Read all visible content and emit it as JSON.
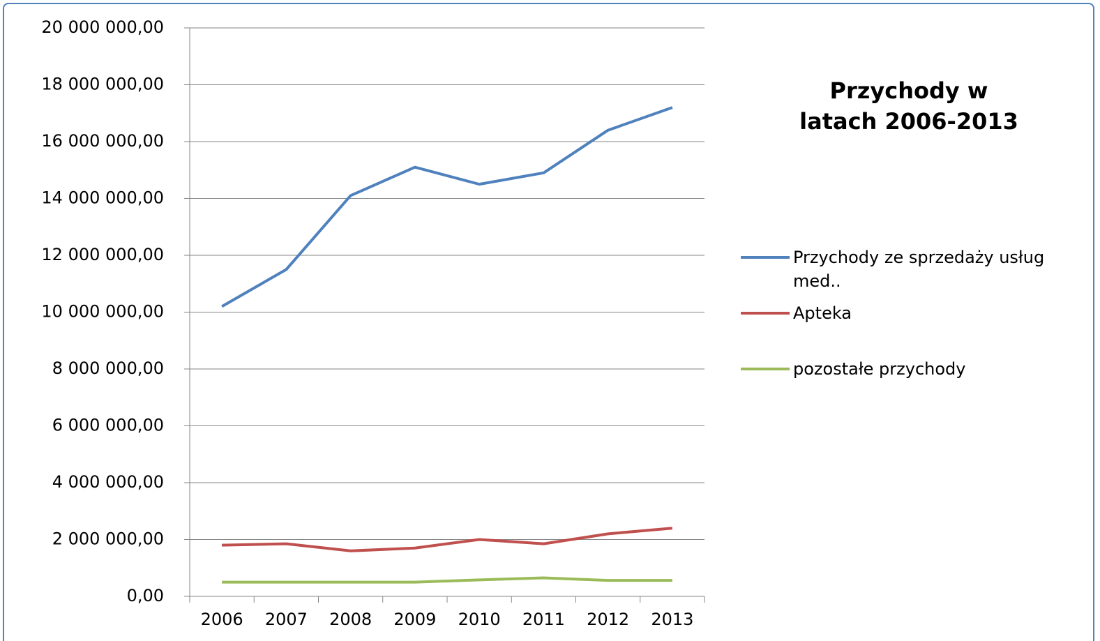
{
  "chart_data": {
    "type": "line",
    "title": "Przychody w latach 2006-2013",
    "categories": [
      "2006",
      "2007",
      "2008",
      "2009",
      "2010",
      "2011",
      "2012",
      "2013"
    ],
    "series": [
      {
        "name": "Przychody ze sprzedaży usług med..",
        "color": "#4f81bd",
        "values": [
          10200000,
          11500000,
          14100000,
          15100000,
          14500000,
          14900000,
          16400000,
          17200000
        ]
      },
      {
        "name": "Apteka",
        "color": "#c0504d",
        "values": [
          1800000,
          1850000,
          1600000,
          1700000,
          2000000,
          1850000,
          2200000,
          2400000
        ]
      },
      {
        "name": "pozostałe przychody",
        "color": "#9bbb59",
        "values": [
          500000,
          500000,
          500000,
          500000,
          580000,
          650000,
          560000,
          560000
        ]
      }
    ],
    "ylim": [
      0,
      20000000
    ],
    "yticks": [
      {
        "value": 0,
        "label": "0,00"
      },
      {
        "value": 2000000,
        "label": "2 000 000,00"
      },
      {
        "value": 4000000,
        "label": "4 000 000,00"
      },
      {
        "value": 6000000,
        "label": "6 000 000,00"
      },
      {
        "value": 8000000,
        "label": "8 000 000,00"
      },
      {
        "value": 10000000,
        "label": "10 000 000,00"
      },
      {
        "value": 12000000,
        "label": "12 000 000,00"
      },
      {
        "value": 14000000,
        "label": "14 000 000,00"
      },
      {
        "value": 16000000,
        "label": "16 000 000,00"
      },
      {
        "value": 18000000,
        "label": "18 000 000,00"
      },
      {
        "value": 20000000,
        "label": "20 000 000,00"
      }
    ],
    "grid": true,
    "legend": "right"
  }
}
